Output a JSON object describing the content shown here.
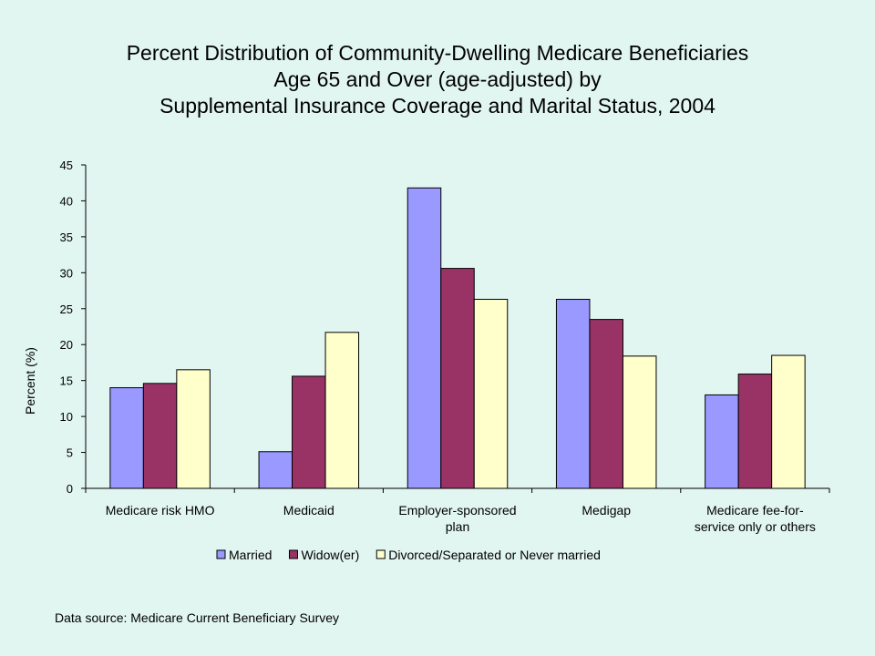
{
  "title_lines": [
    "Percent Distribution of Community-Dwelling Medicare Beneficiaries",
    "Age 65 and Over (age-adjusted) by",
    "Supplemental Insurance Coverage and Marital Status, 2004"
  ],
  "source_note": "Data source: Medicare Current Beneficiary Survey",
  "chart_data": {
    "type": "bar",
    "title": "Percent Distribution of Community-Dwelling Medicare Beneficiaries Age 65 and Over (age-adjusted) by Supplemental Insurance Coverage and Marital Status, 2004",
    "xlabel": "",
    "ylabel": "Percent (%)",
    "ylim": [
      0,
      45
    ],
    "yticks": [
      0,
      5,
      10,
      15,
      20,
      25,
      30,
      35,
      40,
      45
    ],
    "grid": false,
    "legend_position": "bottom",
    "categories": [
      [
        "Medicare risk HMO"
      ],
      [
        "Medicaid"
      ],
      [
        "Employer-sponsored",
        "plan"
      ],
      [
        "Medigap"
      ],
      [
        "Medicare fee-for-",
        "service only or others"
      ]
    ],
    "series": [
      {
        "name": "Married",
        "color": "#9999ff",
        "values": [
          14.0,
          5.1,
          41.8,
          26.3,
          13.0
        ]
      },
      {
        "name": "Widow(er)",
        "color": "#993366",
        "values": [
          14.6,
          15.6,
          30.6,
          23.5,
          15.9
        ]
      },
      {
        "name": "Divorced/Separated or Never married",
        "color": "#ffffcc",
        "values": [
          16.5,
          21.7,
          26.3,
          18.4,
          18.5
        ]
      }
    ]
  }
}
